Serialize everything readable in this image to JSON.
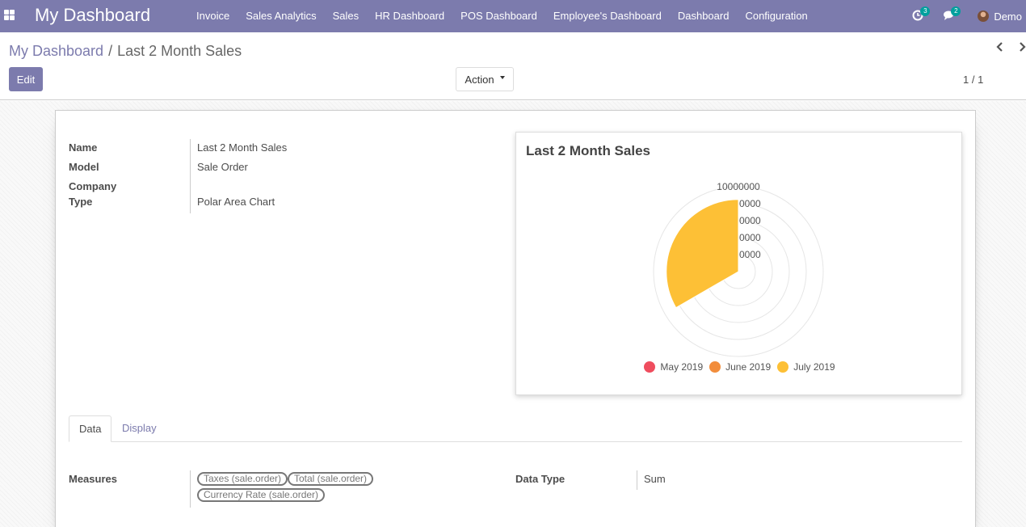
{
  "navbar": {
    "brand": "My Dashboard",
    "menu": [
      "Invoice",
      "Sales Analytics",
      "Sales",
      "HR Dashboard",
      "POS Dashboard",
      "Employee's Dashboard",
      "Dashboard",
      "Configuration"
    ],
    "activity_count": "3",
    "message_count": "2",
    "user": "Demo",
    "color": "#7c7bad"
  },
  "breadcrumb": {
    "parent": "My Dashboard",
    "separator": "/",
    "current": "Last 2 Month Sales"
  },
  "buttons": {
    "edit": "Edit",
    "action": "Action"
  },
  "pager": {
    "value": "1 / 1"
  },
  "form": {
    "name_label": "Name",
    "name_value": "Last 2 Month Sales",
    "model_label": "Model",
    "model_value": "Sale Order",
    "company_label": "Company",
    "company_value": "",
    "type_label": "Type",
    "type_value": "Polar Area Chart"
  },
  "chart_data": {
    "type": "polarArea",
    "title": "Last 2 Month Sales",
    "categories": [
      "May 2019",
      "June 2019",
      "July 2019"
    ],
    "values": [
      0,
      0,
      8500000
    ],
    "colors": [
      "#ef4d5e",
      "#f28d3c",
      "#fdc036"
    ],
    "r_ticks": [
      "10000000"
    ],
    "r_ticks_partial": [
      "0000",
      "0000",
      "0000",
      "0000"
    ],
    "r_range": [
      0,
      10000000
    ],
    "legend": "bottom",
    "grid": true
  },
  "tabs": {
    "data": "Data",
    "display": "Display"
  },
  "data_tab": {
    "measures_label": "Measures",
    "measures": [
      "Taxes (sale.order)",
      "Total (sale.order)",
      "Currency Rate (sale.order)"
    ],
    "data_type_label": "Data Type",
    "data_type_value": "Sum"
  }
}
